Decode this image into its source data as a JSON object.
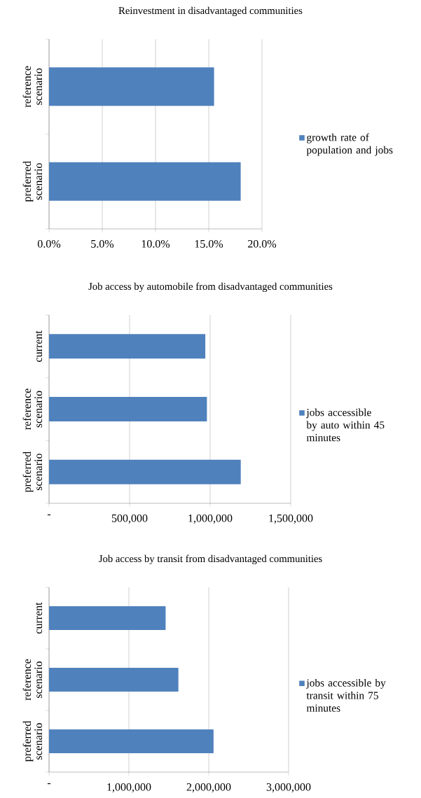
{
  "chart_data": [
    {
      "type": "bar",
      "orientation": "horizontal",
      "title": "Reinvestment in disadvantaged communities",
      "categories": [
        "reference scenario",
        "preferred scenario"
      ],
      "series": [
        {
          "name": "growth rate of population and jobs",
          "color": "#4f81bd",
          "values": [
            15.5,
            18.0
          ]
        }
      ],
      "xlim": [
        0,
        20
      ],
      "xticks": [
        {
          "value": 0,
          "label": "0.0%"
        },
        {
          "value": 5,
          "label": "5.0%"
        },
        {
          "value": 10,
          "label": "10.0%"
        },
        {
          "value": 15,
          "label": "15.0%"
        },
        {
          "value": 20,
          "label": "20.0%"
        }
      ],
      "grid": "x",
      "legend": "right"
    },
    {
      "type": "bar",
      "orientation": "horizontal",
      "title": "Job access by automobile from disadvantaged communities",
      "categories": [
        "current",
        "reference scenario",
        "preferred scenario"
      ],
      "series": [
        {
          "name": "jobs accessible by auto within 45 minutes",
          "color": "#4f81bd",
          "values": [
            970000,
            980000,
            1190000
          ]
        }
      ],
      "xlim": [
        0,
        1500000
      ],
      "xticks": [
        {
          "value": 0,
          "label": "-"
        },
        {
          "value": 500000,
          "label": "500,000"
        },
        {
          "value": 1000000,
          "label": "1,000,000"
        },
        {
          "value": 1500000,
          "label": "1,500,000"
        }
      ],
      "grid": "x",
      "legend": "right"
    },
    {
      "type": "bar",
      "orientation": "horizontal",
      "title": "Job access by transit from disadvantaged communities",
      "categories": [
        "current",
        "reference scenario",
        "preferred scenario"
      ],
      "series": [
        {
          "name": "jobs accessible by transit within 75 minutes",
          "color": "#4f81bd",
          "values": [
            1460000,
            1620000,
            2060000
          ]
        }
      ],
      "xlim": [
        0,
        3000000
      ],
      "xticks": [
        {
          "value": 0,
          "label": "-"
        },
        {
          "value": 1000000,
          "label": "1,000,000"
        },
        {
          "value": 2000000,
          "label": "2,000,000"
        },
        {
          "value": 3000000,
          "label": "3,000,000"
        }
      ],
      "grid": "x",
      "legend": "right"
    }
  ]
}
